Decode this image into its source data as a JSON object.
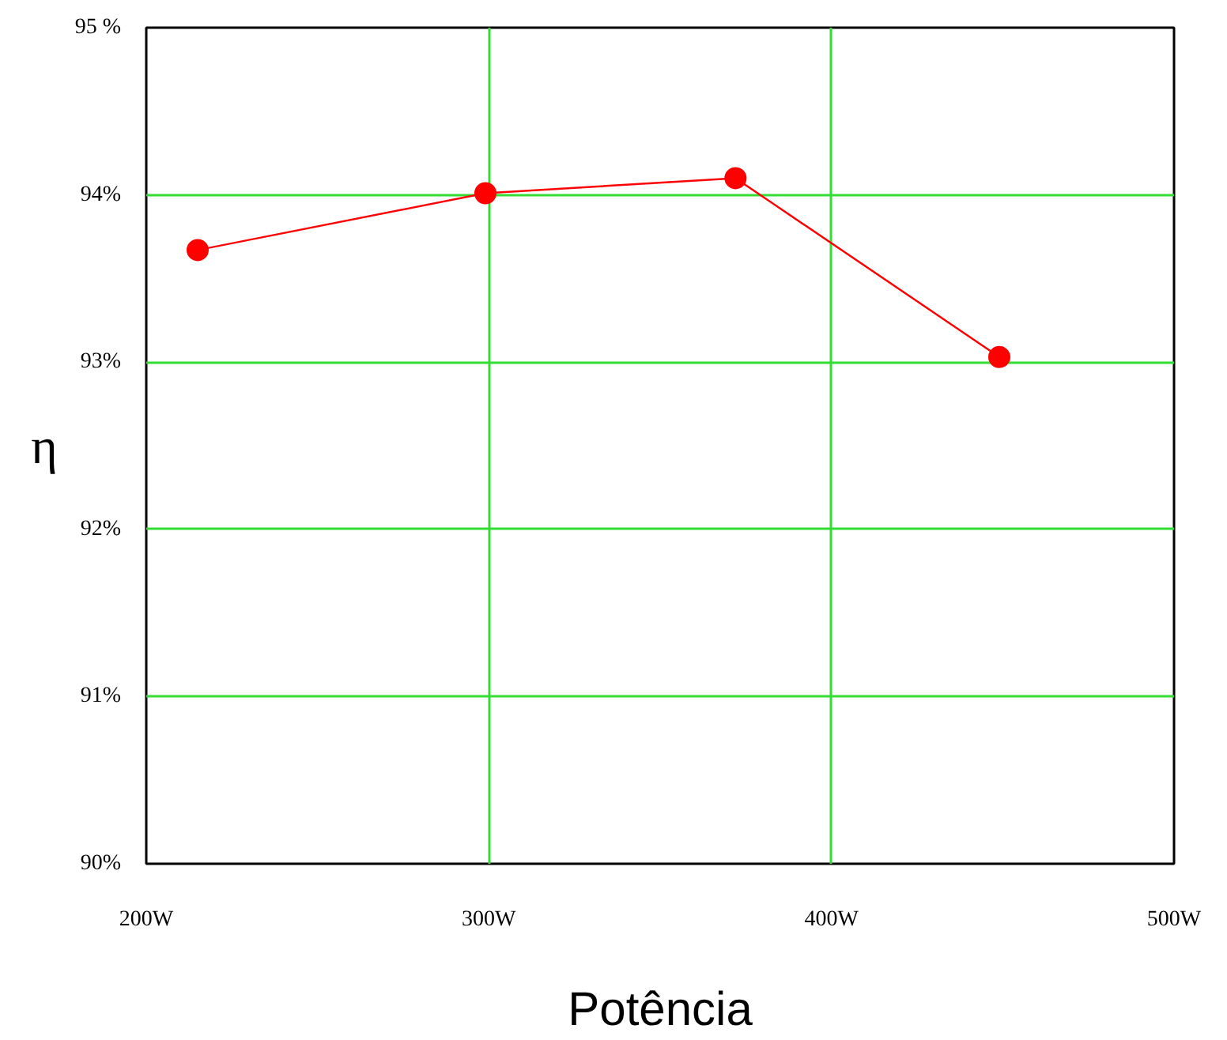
{
  "chart_data": {
    "type": "line",
    "xlabel": "Potência",
    "ylabel": "η",
    "x": [
      215,
      299,
      372,
      449
    ],
    "series": [
      {
        "color": "#ff0000",
        "values": [
          93.67,
          94.01,
          94.1,
          93.03
        ]
      }
    ],
    "xlim": [
      200,
      500
    ],
    "ylim": [
      90,
      95
    ],
    "xticks": [
      {
        "value": 200,
        "label": "200W"
      },
      {
        "value": 300,
        "label": "300W"
      },
      {
        "value": 400,
        "label": "400W"
      },
      {
        "value": 500,
        "label": "500W"
      }
    ],
    "yticks": [
      {
        "value": 90,
        "label": "90%"
      },
      {
        "value": 91,
        "label": "91%"
      },
      {
        "value": 92,
        "label": "92%"
      },
      {
        "value": 93,
        "label": "93%"
      },
      {
        "value": 94,
        "label": "94%"
      },
      {
        "value": 95,
        "label": "95 %"
      }
    ],
    "grid": true,
    "marker": "circle",
    "line_style": "solid"
  }
}
